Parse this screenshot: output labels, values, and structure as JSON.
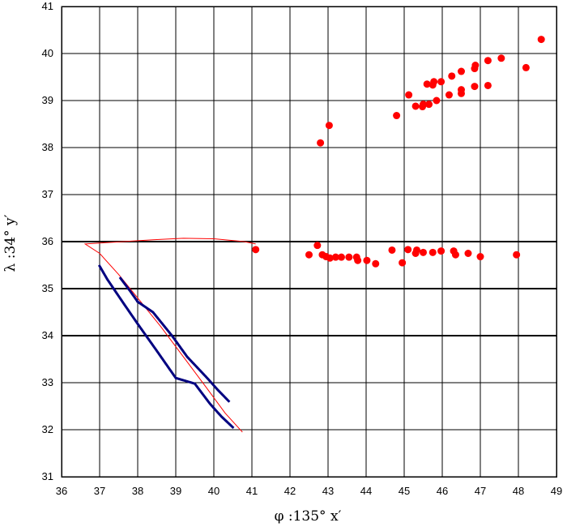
{
  "chart_data": {
    "type": "scatter",
    "title": "",
    "xlabel": "φ :135° x′",
    "ylabel": "λ :34° y′",
    "xlim": [
      36,
      49
    ],
    "ylim": [
      31,
      41
    ],
    "xticks": [
      36,
      37,
      38,
      39,
      40,
      41,
      42,
      43,
      44,
      45,
      46,
      47,
      48,
      49
    ],
    "yticks": [
      31,
      32,
      33,
      34,
      35,
      36,
      37,
      38,
      39,
      40,
      41
    ],
    "grid": true,
    "bold_gridlines_y": [
      34,
      35,
      36
    ],
    "colors": {
      "points": "#ff0000",
      "track": "#000080",
      "curve": "#ff0000",
      "grid": "#000000"
    },
    "series": [
      {
        "kind": "points",
        "color": "#ff0000",
        "points": [
          [
            48.6,
            40.3
          ],
          [
            48.2,
            39.7
          ],
          [
            47.55,
            39.9
          ],
          [
            47.2,
            39.85
          ],
          [
            47.2,
            39.32
          ],
          [
            46.87,
            39.75
          ],
          [
            46.85,
            39.68
          ],
          [
            46.85,
            39.3
          ],
          [
            46.5,
            39.62
          ],
          [
            46.5,
            39.23
          ],
          [
            46.5,
            39.15
          ],
          [
            46.25,
            39.52
          ],
          [
            46.18,
            39.12
          ],
          [
            45.97,
            39.4
          ],
          [
            45.85,
            39.0
          ],
          [
            45.78,
            39.4
          ],
          [
            45.75,
            39.33
          ],
          [
            45.65,
            38.92
          ],
          [
            45.6,
            39.35
          ],
          [
            45.5,
            38.92
          ],
          [
            45.48,
            38.87
          ],
          [
            45.3,
            38.88
          ],
          [
            45.12,
            39.12
          ],
          [
            44.8,
            38.68
          ],
          [
            43.03,
            38.47
          ],
          [
            42.8,
            38.1
          ],
          [
            47.95,
            35.72
          ],
          [
            47.0,
            35.68
          ],
          [
            46.68,
            35.75
          ],
          [
            46.35,
            35.72
          ],
          [
            46.3,
            35.8
          ],
          [
            45.97,
            35.8
          ],
          [
            45.75,
            35.77
          ],
          [
            45.5,
            35.77
          ],
          [
            45.33,
            35.82
          ],
          [
            45.3,
            35.75
          ],
          [
            45.1,
            35.83
          ],
          [
            44.95,
            35.55
          ],
          [
            44.68,
            35.82
          ],
          [
            44.25,
            35.53
          ],
          [
            44.02,
            35.6
          ],
          [
            43.78,
            35.6
          ],
          [
            43.75,
            35.67
          ],
          [
            43.55,
            35.67
          ],
          [
            43.35,
            35.67
          ],
          [
            43.2,
            35.67
          ],
          [
            43.05,
            35.65
          ],
          [
            42.95,
            35.68
          ],
          [
            42.85,
            35.72
          ],
          [
            42.72,
            35.92
          ],
          [
            42.5,
            35.72
          ],
          [
            41.1,
            35.83
          ]
        ]
      },
      {
        "kind": "track",
        "color": "#000080",
        "segments": [
          [
            [
              37.0,
              35.48
            ],
            [
              37.2,
              35.2
            ],
            [
              37.6,
              34.72
            ],
            [
              38.0,
              34.25
            ],
            [
              38.5,
              33.68
            ],
            [
              39.0,
              33.1
            ],
            [
              39.5,
              32.98
            ],
            [
              39.9,
              32.55
            ],
            [
              40.2,
              32.28
            ],
            [
              40.5,
              32.05
            ]
          ],
          [
            [
              37.55,
              35.22
            ],
            [
              37.8,
              34.95
            ],
            [
              38.0,
              34.72
            ],
            [
              38.4,
              34.5
            ],
            [
              38.9,
              34.0
            ],
            [
              39.3,
              33.55
            ],
            [
              39.8,
              33.12
            ],
            [
              40.1,
              32.85
            ],
            [
              40.4,
              32.6
            ]
          ]
        ]
      },
      {
        "kind": "curve",
        "color": "#ff0000",
        "points": [
          [
            40.75,
            31.95
          ],
          [
            40.3,
            32.35
          ],
          [
            39.8,
            32.9
          ],
          [
            39.2,
            33.55
          ],
          [
            38.6,
            34.2
          ],
          [
            38.0,
            34.8
          ],
          [
            37.5,
            35.3
          ],
          [
            37.0,
            35.75
          ],
          [
            36.62,
            35.95
          ],
          [
            37.4,
            35.99
          ],
          [
            38.4,
            36.04
          ],
          [
            39.2,
            36.07
          ],
          [
            40.0,
            36.06
          ],
          [
            40.8,
            36.0
          ],
          [
            41.1,
            35.95
          ]
        ]
      }
    ]
  }
}
